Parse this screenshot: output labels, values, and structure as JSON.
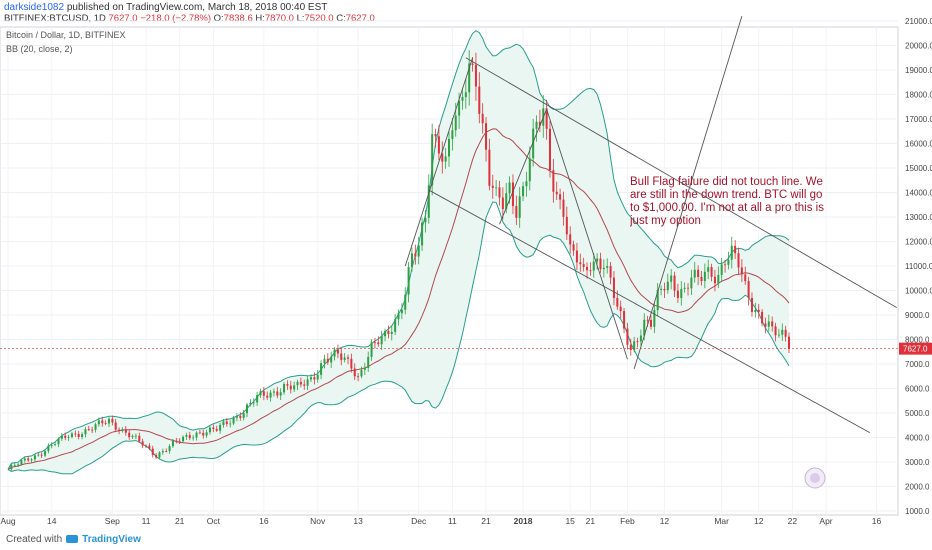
{
  "header": {
    "author": "darkside1082",
    "published_text": "published on TradingView.com, March 18, 2018 00:40 EST",
    "symbol": "BITFINEX:BTCUSD, 1D",
    "last": "7627.0",
    "change": "−218.0 (−2.78%)",
    "o_label": "O:",
    "o_value": "7838.6",
    "h_label": "H:",
    "h_value": "7870.0",
    "l_label": "L:",
    "l_value": "7520.0",
    "c_label": "C:",
    "c_value": "7627.0"
  },
  "footer": {
    "created_label": "Created with",
    "brand": "TradingView"
  },
  "colors": {
    "up": "#2ea043",
    "down": "#e0313b",
    "bb_band": "#2a9d8f",
    "bb_basis": "#b5484f",
    "bb_fill": "#e9f6f2",
    "trendline": "#555555",
    "price_line": "#e0313b",
    "annotation": "#a3142b"
  },
  "chart_data": {
    "type": "candlestick",
    "legend_lines": [
      "Bitcoin / Dollar, 1D, BITFINEX",
      "BB (20, close, 2)"
    ],
    "annotation": "Bull Flag failure did not touch line. We are still in the down trend. BTC will go to $1,000.00. I'm not at all a pro this is just my option",
    "y_axis": {
      "min": 1000,
      "max": 21000,
      "ticks": [
        "1000.0",
        "2000.0",
        "3000.0",
        "4000.0",
        "5000.0",
        "6000.0",
        "7000.0",
        "8000.0",
        "9000.0",
        "10000.0",
        "11000.0",
        "12000.0",
        "13000.0",
        "14000.0",
        "15000.0",
        "16000.0",
        "17000.0",
        "18000.0",
        "19000.0",
        "20000.0",
        "21000.0"
      ]
    },
    "x_axis": {
      "ticks": [
        {
          "label": "Aug",
          "day": 0
        },
        {
          "label": "14",
          "day": 13
        },
        {
          "label": "Sep",
          "day": 31
        },
        {
          "label": "11",
          "day": 41
        },
        {
          "label": "21",
          "day": 51
        },
        {
          "label": "Oct",
          "day": 61
        },
        {
          "label": "16",
          "day": 76
        },
        {
          "label": "Nov",
          "day": 92
        },
        {
          "label": "13",
          "day": 104
        },
        {
          "label": "Dec",
          "day": 122
        },
        {
          "label": "11",
          "day": 132
        },
        {
          "label": "21",
          "day": 142
        },
        {
          "label": "2018",
          "day": 153
        },
        {
          "label": "21",
          "day": 173
        },
        {
          "label": "15",
          "day": 167
        },
        {
          "label": "Feb",
          "day": 184
        },
        {
          "label": "12",
          "day": 195
        },
        {
          "label": "Mar",
          "day": 212
        },
        {
          "label": "12",
          "day": 223
        },
        {
          "label": "22",
          "day": 233
        },
        {
          "label": "Apr",
          "day": 243
        },
        {
          "label": "16",
          "day": 258
        }
      ],
      "day_range": [
        0,
        262
      ]
    },
    "last_price": 7627.0,
    "last_price_label": "7627.0",
    "close_key": [
      [
        0,
        2700
      ],
      [
        10,
        3400
      ],
      [
        18,
        4100
      ],
      [
        24,
        4300
      ],
      [
        30,
        4700
      ],
      [
        33,
        4400
      ],
      [
        40,
        3700
      ],
      [
        44,
        3300
      ],
      [
        50,
        3800
      ],
      [
        56,
        4200
      ],
      [
        62,
        4300
      ],
      [
        66,
        4700
      ],
      [
        70,
        5100
      ],
      [
        74,
        5600
      ],
      [
        78,
        5800
      ],
      [
        82,
        6100
      ],
      [
        86,
        6000
      ],
      [
        90,
        6400
      ],
      [
        94,
        7200
      ],
      [
        98,
        7300
      ],
      [
        102,
        7000
      ],
      [
        104,
        6500
      ],
      [
        108,
        7600
      ],
      [
        112,
        8100
      ],
      [
        116,
        9100
      ],
      [
        118,
        10000
      ],
      [
        120,
        11300
      ],
      [
        122,
        11600
      ],
      [
        124,
        13000
      ],
      [
        126,
        16400
      ],
      [
        128,
        16200
      ],
      [
        130,
        15200
      ],
      [
        132,
        16700
      ],
      [
        134,
        17000
      ],
      [
        137,
        19200
      ],
      [
        139,
        19000
      ],
      [
        141,
        16700
      ],
      [
        143,
        14500
      ],
      [
        145,
        13600
      ],
      [
        147,
        13500
      ],
      [
        149,
        14200
      ],
      [
        151,
        13500
      ],
      [
        153,
        14200
      ],
      [
        155,
        15400
      ],
      [
        157,
        16500
      ],
      [
        159,
        17200
      ],
      [
        161,
        15200
      ],
      [
        163,
        14000
      ],
      [
        165,
        13400
      ],
      [
        167,
        11500
      ],
      [
        169,
        11200
      ],
      [
        171,
        10600
      ],
      [
        173,
        11200
      ],
      [
        175,
        11300
      ],
      [
        177,
        11200
      ],
      [
        179,
        10300
      ],
      [
        181,
        9200
      ],
      [
        183,
        8400
      ],
      [
        185,
        7600
      ],
      [
        187,
        8200
      ],
      [
        189,
        8700
      ],
      [
        191,
        8600
      ],
      [
        193,
        9600
      ],
      [
        195,
        10200
      ],
      [
        197,
        10500
      ],
      [
        199,
        10100
      ],
      [
        201,
        10000
      ],
      [
        203,
        10500
      ],
      [
        205,
        10300
      ],
      [
        207,
        10700
      ],
      [
        209,
        10800
      ],
      [
        211,
        10700
      ],
      [
        213,
        11300
      ],
      [
        215,
        11400
      ],
      [
        217,
        11000
      ],
      [
        219,
        10100
      ],
      [
        221,
        9500
      ],
      [
        223,
        9100
      ],
      [
        225,
        8700
      ],
      [
        227,
        8300
      ],
      [
        229,
        8100
      ],
      [
        231,
        8100
      ],
      [
        232,
        7627
      ]
    ],
    "trendlines": [
      {
        "name": "upper-channel",
        "from": [
          136,
          19500
        ],
        "to": [
          264,
          9300
        ]
      },
      {
        "name": "lower-channel",
        "from": [
          125,
          14100
        ],
        "to": [
          256,
          4200
        ]
      },
      {
        "name": "rise-line",
        "from": [
          118,
          11000
        ],
        "to": [
          138,
          19500
        ]
      },
      {
        "name": "fib-line-1",
        "from": [
          146,
          12700
        ],
        "to": [
          160,
          17400
        ]
      },
      {
        "name": "fib-line-2",
        "from": [
          160,
          17400
        ],
        "to": [
          184,
          7200
        ]
      },
      {
        "name": "projection",
        "from": [
          186,
          6800
        ],
        "to": [
          218,
          21200
        ]
      }
    ]
  }
}
